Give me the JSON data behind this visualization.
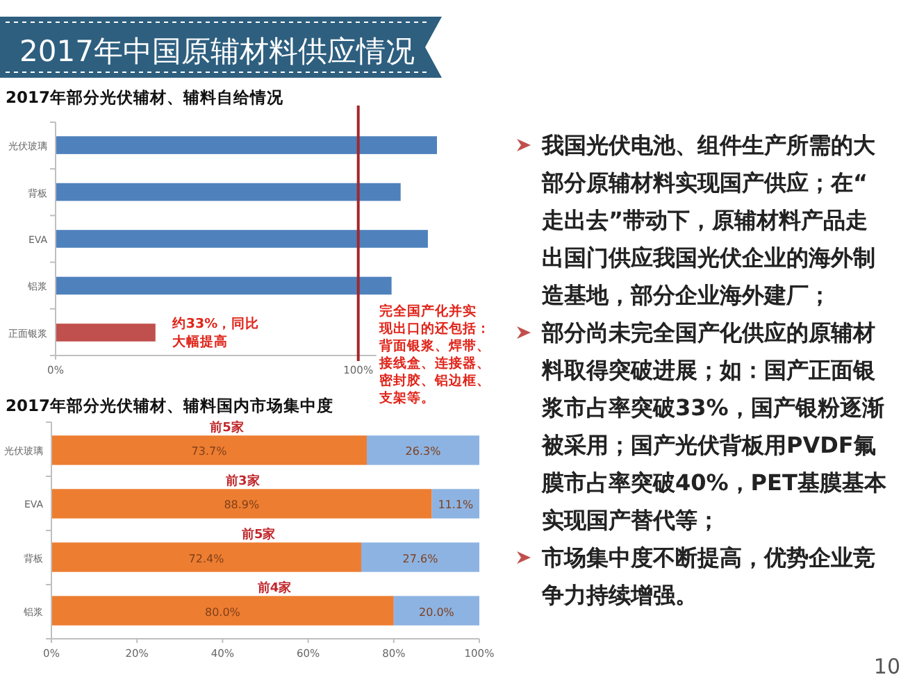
{
  "chart_data": [
    {
      "type": "bar",
      "orientation": "horizontal",
      "title": "2017年中国原辅材料供应情况",
      "subtitle": "2017年部分光伏辅材、辅料自给情况",
      "categories": [
        "光伏玻璃",
        "背板",
        "EVA",
        "铝浆",
        "正面银浆"
      ],
      "series": [
        {
          "values": [
            126,
            114,
            123,
            111,
            33
          ],
          "colors": [
            "#4f81bd",
            "#4f81bd",
            "#4f81bd",
            "#4f81bd",
            "#c0504d"
          ]
        }
      ],
      "xlim": [
        0,
        140
      ],
      "xticks": [
        {
          "value": 0,
          "label": "0%"
        },
        {
          "value": 100,
          "label": "100%"
        }
      ],
      "ref_lines": [
        {
          "axis": "x",
          "value": 100,
          "color": "#a0282d",
          "label": "完全国产化并实现出口的还包括：背面银浆、焊带、接线盒、连接器、密封胶、铝边框、支架等。"
        }
      ],
      "annotations": [
        {
          "text": "约33%，同比大幅提高",
          "x": 33,
          "y": "正面银浆"
        }
      ]
    },
    {
      "type": "bar",
      "orientation": "horizontal",
      "stacked": true,
      "title": "2017年部分光伏辅材、辅料国内市场集中度",
      "categories": [
        "光伏玻璃",
        "EVA",
        "背板",
        "铝浆"
      ],
      "series": [
        {
          "color": "#ed7d31",
          "values": [
            73.7,
            88.9,
            72.4,
            80.0
          ],
          "value_labels": [
            "73.7%",
            "88.9%",
            "72.4%",
            "80.0%"
          ]
        },
        {
          "color": "#8db3e2",
          "values": [
            26.3,
            11.1,
            27.6,
            20.0
          ],
          "value_labels": [
            "26.3%",
            "11.1%",
            "27.6%",
            "20.0%"
          ]
        }
      ],
      "xlim": [
        0,
        100
      ],
      "xticks": [
        {
          "value": 0,
          "label": "0%"
        },
        {
          "value": 20,
          "label": "20%"
        },
        {
          "value": 40,
          "label": "40%"
        },
        {
          "value": 60,
          "label": "60%"
        },
        {
          "value": 80,
          "label": "80%"
        },
        {
          "value": 100,
          "label": "100%"
        }
      ],
      "annotations": [
        "前5家",
        "前3家",
        "前5家",
        "前4家"
      ]
    },
    {
      "type": "other",
      "annotations": [
        "我国光伏电池、组件生产所需的大部分原辅材料实现国产供应；在“走出去”带动下，原辅材料产品走出国门供应我国光伏企业的海外制造基地，部分企业海外建厂；",
        "部分尚未完全国产化供应的原辅材料取得突破进展；如：国产正面银浆市占率突破33%，国产银粉逐渐被采用；国产光伏背板用PVDF氟膜市占率突破40%，PET基膜基本实现国产替代等；",
        "市场集中度不断提高，优势企业竞争力持续增强。",
        "10"
      ]
    }
  ]
}
